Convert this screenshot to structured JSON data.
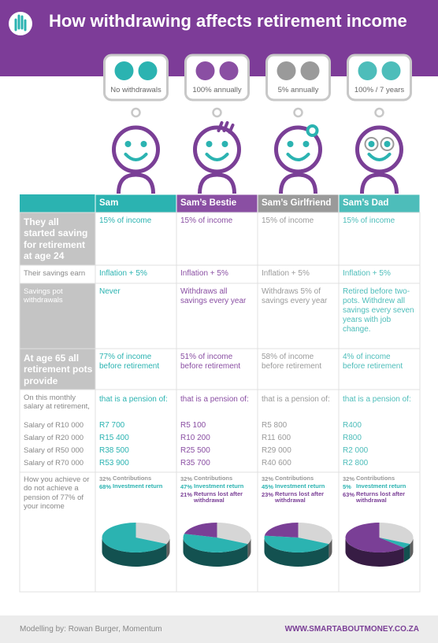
{
  "header": {
    "title": "How withdrawing affects retirement income"
  },
  "bubbles": [
    "No withdrawals",
    "100% annually",
    "5% annually",
    "100% / 7 years"
  ],
  "table": {
    "columns": [
      {
        "name": "Sam",
        "color": "#2bb3b1"
      },
      {
        "name": "Sam’s Bestie",
        "color": "#8a4fa3"
      },
      {
        "name": "Sam’s Girlfriend",
        "color": "#9a9a9a"
      },
      {
        "name": "Sam’s Dad",
        "color": "#4dbdba"
      }
    ],
    "rows": [
      {
        "label": "They all started saving for retirement at age 24",
        "cells": [
          "15% of income",
          "15% of income",
          "15% of income",
          "15% of income"
        ]
      },
      {
        "label": "Their savings earn",
        "cells": [
          "Inflation + 5%",
          "Inflation + 5%",
          "Inflation + 5%",
          "Inflation + 5%"
        ]
      },
      {
        "label": "Savings pot withdrawals",
        "cells": [
          "Never",
          "Withdraws all savings every year",
          "Withdraws 5% of savings every year",
          "Retired before two-pots. Withdrew all savings every seven years with job change."
        ]
      },
      {
        "label": "At age 65 all retirement pots provide",
        "cells": [
          "77% of income before retirement",
          "51% of income before retirement",
          "58% of income before retirement",
          "4% of income before retirement"
        ]
      }
    ],
    "pension": {
      "label": "On this monthly salary at retirement,",
      "cells": [
        "that is a pension of:",
        "that is a pension of:",
        "that is a pension of:",
        "that is a pension of:"
      ],
      "salaries": [
        {
          "label": "Salary of R10 000",
          "cells": [
            "R7 700",
            "R5 100",
            "R5 800",
            "R400"
          ]
        },
        {
          "label": "Salary of R20 000",
          "cells": [
            "R15 400",
            "R10 200",
            "R11 600",
            "R800"
          ]
        },
        {
          "label": "Salary of R50 000",
          "cells": [
            "R38 500",
            "R25 500",
            "R29 000",
            "R2 000"
          ]
        },
        {
          "label": "Salary of R70 000",
          "cells": [
            "R53 900",
            "R35 700",
            "R40 600",
            "R2 800"
          ]
        }
      ]
    },
    "achieve": {
      "label": "How you achieve or do not achieve a pension of 77% of your income"
    }
  },
  "pies": {
    "series_names": [
      "Contributions",
      "Investment return",
      "Returns lost after withdrawal"
    ],
    "colors": [
      "#d6d6d6",
      "#2bb3b1",
      "#7a3f96"
    ],
    "items": [
      {
        "values": [
          32,
          68
        ],
        "value_labels": [
          "32%",
          "68%"
        ]
      },
      {
        "values": [
          32,
          47,
          21
        ],
        "value_labels": [
          "32%",
          "47%",
          "21%"
        ]
      },
      {
        "values": [
          32,
          45,
          23
        ],
        "value_labels": [
          "32%",
          "45%",
          "23%"
        ]
      },
      {
        "values": [
          32,
          5,
          63
        ],
        "value_labels": [
          "32%",
          "5%",
          "63%"
        ]
      }
    ]
  },
  "footer": {
    "credit": "Modelling by:  Rowan Burger, Momentum",
    "url": "WWW.SMARTABOUTMONEY.CO.ZA"
  }
}
